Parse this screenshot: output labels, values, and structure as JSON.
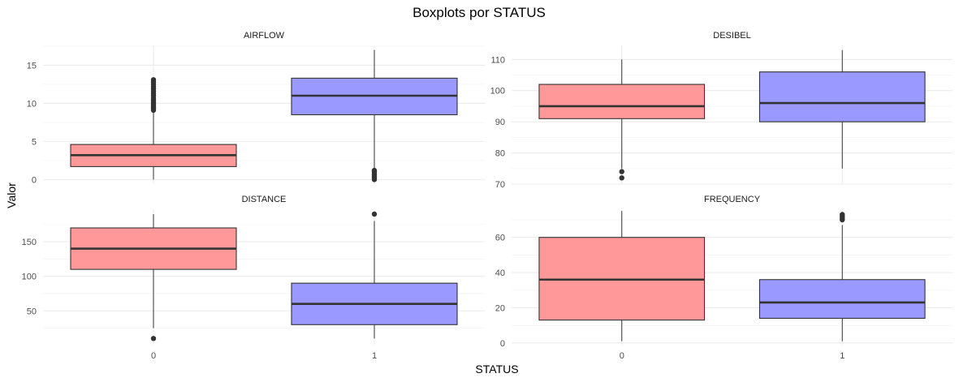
{
  "chart_data": {
    "type": "boxplot",
    "title": "Boxplots por STATUS",
    "xlabel": "STATUS",
    "ylabel": "Valor",
    "categories": [
      "0",
      "1"
    ],
    "colors": {
      "0": "#ff9999",
      "1": "#9999ff"
    },
    "grid": true,
    "panels": [
      {
        "name": "AIRFLOW",
        "ylim": [
          -0.6,
          17.6
        ],
        "yticks": [
          0,
          5,
          10,
          15
        ],
        "boxes": [
          {
            "status": "0",
            "whisker_low": 0.0,
            "q1": 1.7,
            "median": 3.2,
            "q3": 4.6,
            "whisker_high": 9.0,
            "outliers": [
              9.1,
              9.3,
              9.5,
              9.7,
              9.9,
              10.1,
              10.4,
              10.7,
              11.0,
              11.3,
              11.6,
              11.9,
              12.2,
              12.5,
              12.8,
              13.1
            ]
          },
          {
            "status": "1",
            "whisker_low": 1.3,
            "q1": 8.5,
            "median": 11.0,
            "q3": 13.3,
            "whisker_high": 17.0,
            "outliers": [
              0.0,
              0.2,
              0.4,
              0.6,
              0.8,
              1.0,
              1.2
            ]
          }
        ]
      },
      {
        "name": "DESIBEL",
        "ylim": [
          70,
          114.5
        ],
        "yticks": [
          70,
          80,
          90,
          100,
          110
        ],
        "boxes": [
          {
            "status": "0",
            "whisker_low": 75,
            "q1": 91,
            "median": 95,
            "q3": 102,
            "whisker_high": 110,
            "outliers": [
              72,
              74
            ]
          },
          {
            "status": "1",
            "whisker_low": 75,
            "q1": 90,
            "median": 96,
            "q3": 106,
            "whisker_high": 113,
            "outliers": []
          }
        ]
      },
      {
        "name": "DISTANCE",
        "ylim": [
          1,
          197
        ],
        "yticks": [
          50,
          100,
          150
        ],
        "boxes": [
          {
            "status": "0",
            "whisker_low": 25,
            "q1": 110,
            "median": 140,
            "q3": 170,
            "whisker_high": 190,
            "outliers": [
              10
            ]
          },
          {
            "status": "1",
            "whisker_low": 10,
            "q1": 30,
            "median": 60,
            "q3": 90,
            "whisker_high": 180,
            "outliers": [
              190
            ]
          }
        ]
      },
      {
        "name": "FREQUENCY",
        "ylim": [
          -1,
          76
        ],
        "yticks": [
          0,
          20,
          40,
          60
        ],
        "boxes": [
          {
            "status": "0",
            "whisker_low": 1,
            "q1": 13,
            "median": 36,
            "q3": 60,
            "whisker_high": 75,
            "outliers": []
          },
          {
            "status": "1",
            "whisker_low": 1,
            "q1": 14,
            "median": 23,
            "q3": 36,
            "whisker_high": 67,
            "outliers": [
              70,
              71,
              72,
              73
            ]
          }
        ]
      }
    ]
  }
}
